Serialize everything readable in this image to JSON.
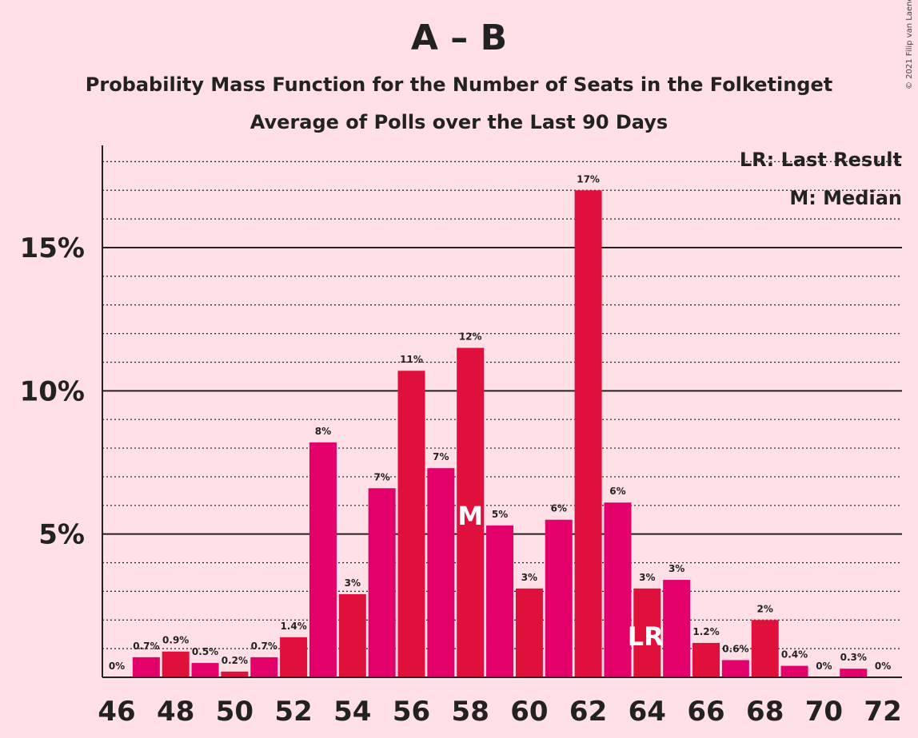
{
  "header": {
    "title": "A – B",
    "subtitle1": "Probability Mass Function for the Number of Seats in the Folketinget",
    "subtitle2": "Average of Polls over the Last 90 Days",
    "copyright": "© 2021 Filip van Laenen"
  },
  "legend": {
    "last_result": "LR: Last Result",
    "median": "M: Median"
  },
  "colors": {
    "background": "#FFE0E6",
    "bar_a": "#E3006B",
    "bar_b": "#E0103C",
    "axis": "#222222"
  },
  "chart_data": {
    "type": "bar",
    "x": [
      46,
      47,
      48,
      49,
      50,
      51,
      52,
      53,
      54,
      55,
      56,
      57,
      58,
      59,
      60,
      61,
      62,
      63,
      64,
      65,
      66,
      67,
      68,
      69,
      70,
      71,
      72
    ],
    "values": [
      0,
      0.7,
      0.9,
      0.5,
      0.2,
      0.7,
      1.4,
      8.2,
      2.9,
      6.6,
      10.7,
      7.3,
      11.5,
      5.3,
      3.1,
      5.5,
      17.0,
      6.1,
      3.1,
      3.4,
      1.2,
      0.6,
      2.0,
      0.4,
      0,
      0.3,
      0
    ],
    "labels": [
      "0%",
      "0.7%",
      "0.9%",
      "0.5%",
      "0.2%",
      "0.7%",
      "1.4%",
      "8%",
      "3%",
      "7%",
      "11%",
      "7%",
      "12%",
      "5%",
      "3%",
      "6%",
      "17%",
      "6%",
      "3%",
      "3%",
      "1.2%",
      "0.6%",
      "2%",
      "0.4%",
      "0%",
      "0.3%",
      "0%"
    ],
    "x_ticks": [
      46,
      48,
      50,
      52,
      54,
      56,
      58,
      60,
      62,
      64,
      66,
      68,
      70,
      72
    ],
    "y_ticks": [
      5,
      10,
      15
    ],
    "y_tick_labels": [
      "5%",
      "10%",
      "15%"
    ],
    "ylim": [
      0,
      18.5
    ],
    "median_seat": 58,
    "median_marker": "M",
    "last_result_seat": 64,
    "last_result_marker": "LR",
    "grid": true,
    "legend_position": "top-right"
  }
}
